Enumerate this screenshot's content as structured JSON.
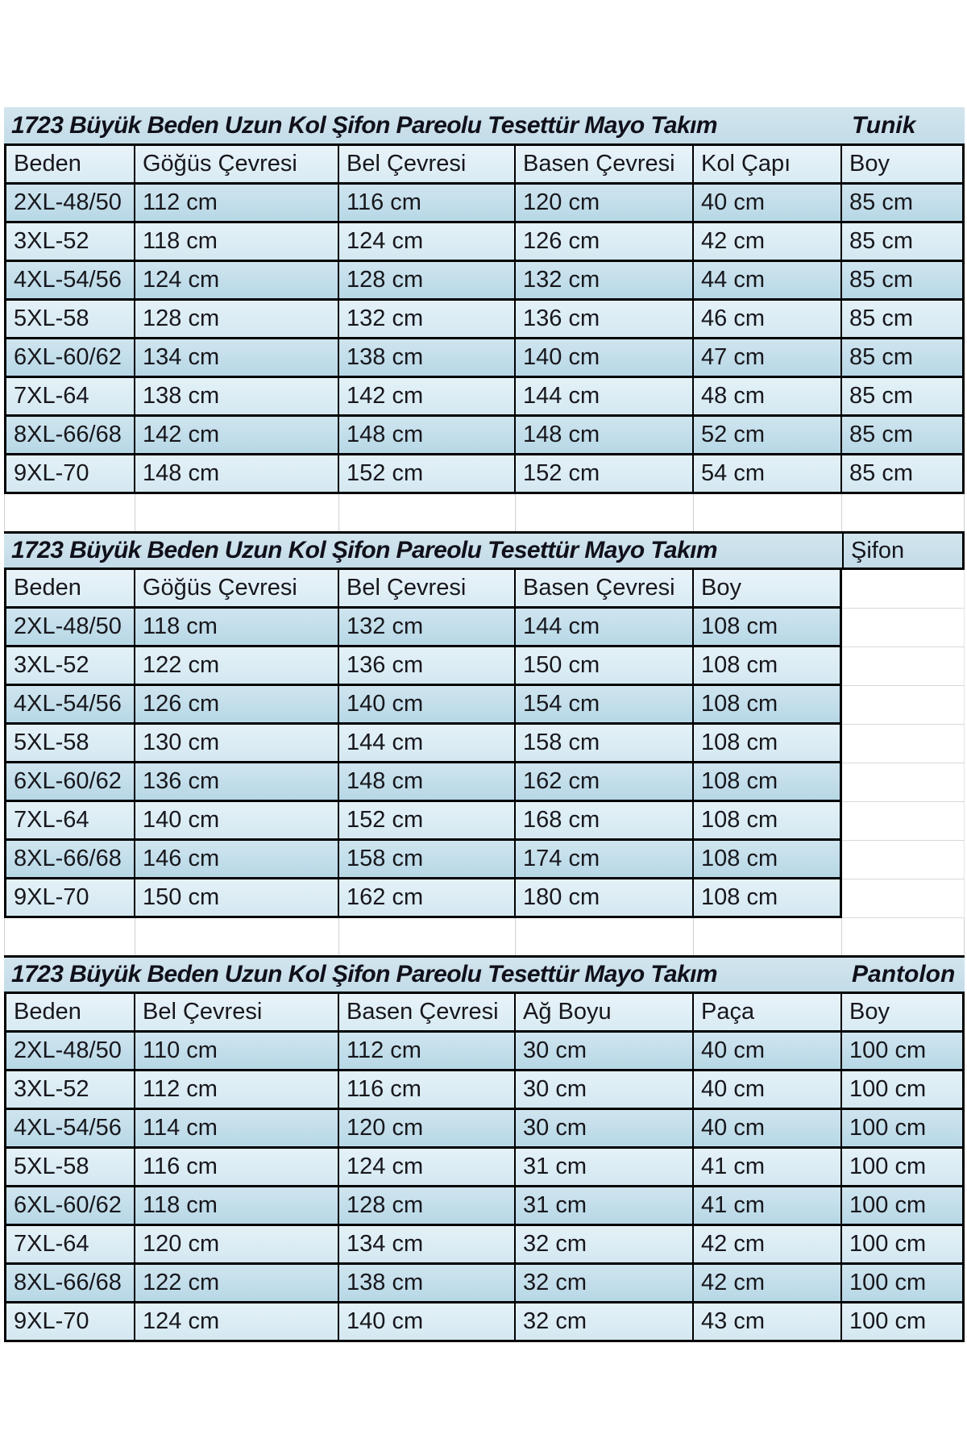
{
  "colors": {
    "title_bg": "#c8dfea",
    "header_bg": "#deeef5",
    "row_dark_bg": "#bedbe9",
    "row_light_bg": "#dcecf4",
    "border": "#000000",
    "faint_grid": "#cdd0d2",
    "title_text": "#10101a",
    "cell_text": "#17171c"
  },
  "tables": [
    {
      "title": "1723 Büyük Beden Uzun Kol Şifon Pareolu Tesettür Mayo Takım",
      "tag": "Tunik",
      "columns": [
        "Beden",
        "Göğüs Çevresi",
        "Bel Çevresi",
        "Basen Çevresi",
        "Kol Çapı",
        "Boy"
      ],
      "rows": [
        [
          "2XL-48/50",
          "112 cm",
          "116 cm",
          "120 cm",
          "40 cm",
          "85 cm"
        ],
        [
          "3XL-52",
          "118 cm",
          "124 cm",
          "126 cm",
          "42 cm",
          "85 cm"
        ],
        [
          "4XL-54/56",
          "124 cm",
          "128 cm",
          "132 cm",
          "44 cm",
          "85 cm"
        ],
        [
          "5XL-58",
          "128 cm",
          "132 cm",
          "136 cm",
          "46 cm",
          "85 cm"
        ],
        [
          "6XL-60/62",
          "134 cm",
          "138 cm",
          "140 cm",
          "47 cm",
          "85 cm"
        ],
        [
          "7XL-64",
          "138 cm",
          "142 cm",
          "144 cm",
          "48 cm",
          "85 cm"
        ],
        [
          "8XL-66/68",
          "142 cm",
          "148 cm",
          "148 cm",
          "52 cm",
          "85 cm"
        ],
        [
          "9XL-70",
          "148 cm",
          "152 cm",
          "152 cm",
          "54 cm",
          "85 cm"
        ]
      ]
    },
    {
      "title": "1723 Büyük Beden Uzun Kol Şifon Pareolu Tesettür Mayo Takım",
      "tag": "Şifon",
      "columns": [
        "Beden",
        "Göğüs Çevresi",
        "Bel Çevresi",
        "Basen Çevresi",
        "Boy"
      ],
      "rows": [
        [
          "2XL-48/50",
          "118 cm",
          "132 cm",
          "144 cm",
          "108 cm"
        ],
        [
          "3XL-52",
          "122 cm",
          "136 cm",
          "150 cm",
          "108 cm"
        ],
        [
          "4XL-54/56",
          "126 cm",
          "140 cm",
          "154 cm",
          "108 cm"
        ],
        [
          "5XL-58",
          "130 cm",
          "144 cm",
          "158 cm",
          "108 cm"
        ],
        [
          "6XL-60/62",
          "136 cm",
          "148 cm",
          "162 cm",
          "108 cm"
        ],
        [
          "7XL-64",
          "140 cm",
          "152 cm",
          "168 cm",
          "108 cm"
        ],
        [
          "8XL-66/68",
          "146 cm",
          "158 cm",
          "174 cm",
          "108 cm"
        ],
        [
          "9XL-70",
          "150 cm",
          "162 cm",
          "180 cm",
          "108 cm"
        ]
      ]
    },
    {
      "title": "1723 Büyük Beden Uzun Kol Şifon Pareolu Tesettür Mayo Takım",
      "tag": "Pantolon",
      "columns": [
        "Beden",
        "Bel Çevresi",
        "Basen Çevresi",
        "Ağ Boyu",
        "Paça",
        "Boy"
      ],
      "rows": [
        [
          "2XL-48/50",
          "110 cm",
          "112 cm",
          "30 cm",
          "40 cm",
          "100 cm"
        ],
        [
          "3XL-52",
          "112 cm",
          "116 cm",
          "30 cm",
          "40 cm",
          "100 cm"
        ],
        [
          "4XL-54/56",
          "114 cm",
          "120 cm",
          "30 cm",
          "40 cm",
          "100 cm"
        ],
        [
          "5XL-58",
          "116 cm",
          "124 cm",
          "31 cm",
          "41 cm",
          "100 cm"
        ],
        [
          "6XL-60/62",
          "118 cm",
          "128 cm",
          "31 cm",
          "41 cm",
          "100 cm"
        ],
        [
          "7XL-64",
          "120 cm",
          "134 cm",
          "32 cm",
          "42 cm",
          "100 cm"
        ],
        [
          "8XL-66/68",
          "122 cm",
          "138 cm",
          "32 cm",
          "42 cm",
          "100 cm"
        ],
        [
          "9XL-70",
          "124 cm",
          "140 cm",
          "32 cm",
          "43 cm",
          "100 cm"
        ]
      ]
    }
  ]
}
